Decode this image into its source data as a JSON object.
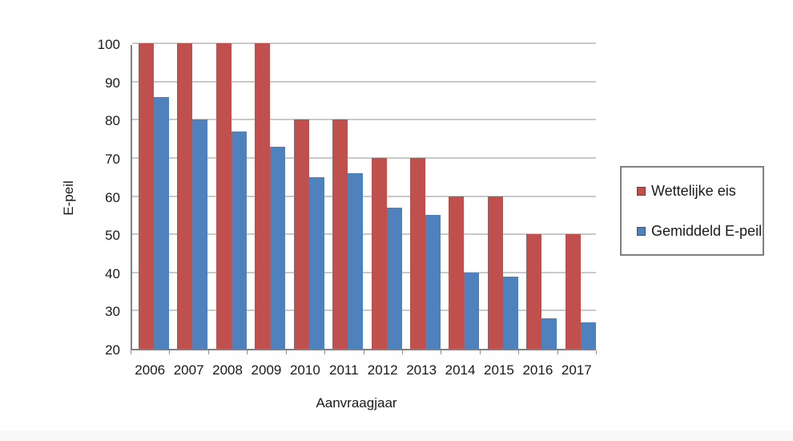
{
  "chart_data": {
    "type": "bar",
    "title": "",
    "categories": [
      "2006",
      "2007",
      "2008",
      "2009",
      "2010",
      "2011",
      "2012",
      "2013",
      "2014",
      "2015",
      "2016",
      "2017"
    ],
    "series": [
      {
        "name": "Wettelijke eis",
        "color": "#c0504d",
        "values": [
          100,
          100,
          100,
          100,
          80,
          80,
          70,
          70,
          60,
          60,
          50,
          50
        ]
      },
      {
        "name": "Gemiddeld E-peil",
        "color": "#4f81bd",
        "values": [
          86,
          80,
          77,
          73,
          65,
          66,
          57,
          55,
          40,
          39,
          28,
          27
        ]
      }
    ],
    "xlabel": "Aanvraagjaar",
    "ylabel": "E-peil",
    "ylim": [
      20,
      100
    ],
    "yticks": [
      20,
      30,
      40,
      50,
      60,
      70,
      80,
      90,
      100
    ],
    "grid": true,
    "legend_position": "right"
  },
  "colors": {
    "gridline": "#c9c9c9",
    "axis": "#808080",
    "text": "#1a1a1a",
    "legend_border": "#808080",
    "background": "#ffffff"
  }
}
